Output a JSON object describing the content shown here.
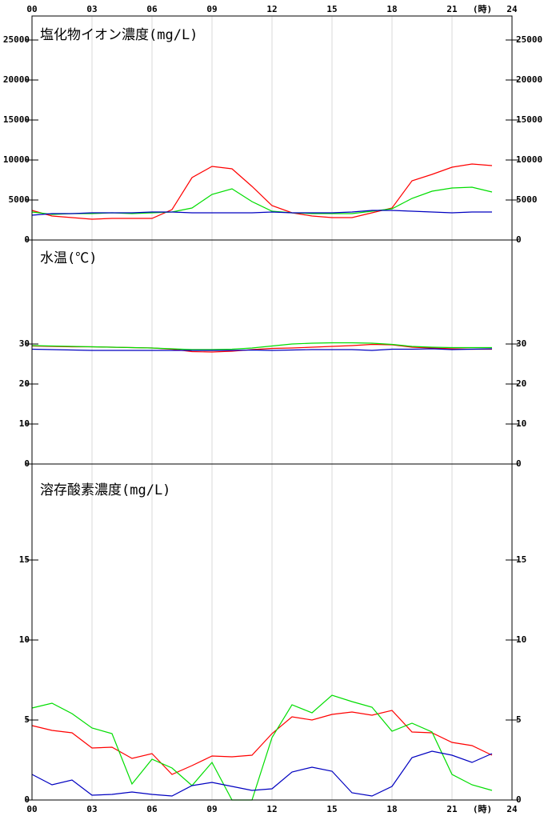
{
  "x_axis": {
    "xlim": [
      0,
      24
    ],
    "unit": "(時)",
    "xticks": [
      {
        "value": 0,
        "label": "00"
      },
      {
        "value": 3,
        "label": "03"
      },
      {
        "value": 6,
        "label": "06"
      },
      {
        "value": 9,
        "label": "09"
      },
      12,
      15,
      18,
      21,
      24
    ]
  },
  "chart_data": [
    {
      "type": "line",
      "title": "塩化物イオン濃度(mg/L)",
      "x": [
        0,
        1,
        2,
        3,
        4,
        5,
        6,
        7,
        8,
        9,
        10,
        11,
        12,
        13,
        14,
        15,
        16,
        17,
        18,
        19,
        20,
        21,
        22,
        23
      ],
      "ylim": [
        0,
        28000
      ],
      "yticks": [
        0,
        5000,
        10000,
        15000,
        20000,
        25000
      ],
      "series": [
        {
          "color": "#ff0000",
          "values": [
            3700,
            3000,
            2800,
            2600,
            2700,
            2700,
            2700,
            3800,
            7800,
            9200,
            8900,
            6700,
            4300,
            3400,
            3000,
            2800,
            2800,
            3400,
            4000,
            7400,
            8200,
            9100,
            9500,
            9300
          ]
        },
        {
          "color": "#00dd00",
          "values": [
            3500,
            3200,
            3300,
            3300,
            3400,
            3300,
            3400,
            3500,
            4000,
            5700,
            6400,
            4800,
            3600,
            3400,
            3300,
            3300,
            3300,
            3600,
            3900,
            5200,
            6100,
            6500,
            6600,
            6000
          ]
        },
        {
          "color": "#0000c0",
          "values": [
            3100,
            3300,
            3300,
            3400,
            3400,
            3400,
            3500,
            3500,
            3400,
            3400,
            3400,
            3400,
            3500,
            3400,
            3400,
            3400,
            3500,
            3700,
            3700,
            3600,
            3500,
            3400,
            3500,
            3500
          ]
        }
      ]
    },
    {
      "type": "line",
      "title": "水温(℃)",
      "x": [
        0,
        1,
        2,
        3,
        4,
        5,
        6,
        7,
        8,
        9,
        10,
        11,
        12,
        13,
        14,
        15,
        16,
        17,
        18,
        19,
        20,
        21,
        22,
        23
      ],
      "ylim": [
        0,
        56
      ],
      "yticks": [
        0,
        10,
        20,
        30
      ],
      "series": [
        {
          "color": "#ff0000",
          "values": [
            29.5,
            29.4,
            29.3,
            29.3,
            29.2,
            29.1,
            29.0,
            28.7,
            28.1,
            28.0,
            28.2,
            28.6,
            28.9,
            29.0,
            29.2,
            29.4,
            29.6,
            29.9,
            29.8,
            29.2,
            29.0,
            28.8,
            28.7,
            28.7
          ]
        },
        {
          "color": "#00dd00",
          "values": [
            29.6,
            29.5,
            29.4,
            29.3,
            29.2,
            29.1,
            29.0,
            28.8,
            28.6,
            28.6,
            28.7,
            29.0,
            29.5,
            30.0,
            30.2,
            30.3,
            30.3,
            30.2,
            29.9,
            29.4,
            29.2,
            29.1,
            29.1,
            29.1
          ]
        },
        {
          "color": "#0000c0",
          "values": [
            28.7,
            28.6,
            28.5,
            28.4,
            28.4,
            28.4,
            28.4,
            28.4,
            28.4,
            28.4,
            28.4,
            28.5,
            28.4,
            28.5,
            28.6,
            28.6,
            28.6,
            28.4,
            28.7,
            28.7,
            28.8,
            28.6,
            28.7,
            28.8
          ]
        }
      ]
    },
    {
      "type": "line",
      "title": "溶存酸素濃度(mg/L)",
      "x": [
        0,
        1,
        2,
        3,
        4,
        5,
        6,
        7,
        8,
        9,
        10,
        11,
        12,
        13,
        14,
        15,
        16,
        17,
        18,
        19,
        20,
        21,
        22,
        23
      ],
      "ylim": [
        0,
        21
      ],
      "yticks": [
        0,
        5,
        10,
        15
      ],
      "series": [
        {
          "color": "#ff0000",
          "values": [
            4.65,
            4.35,
            4.2,
            3.25,
            3.3,
            2.6,
            2.9,
            1.6,
            2.15,
            2.75,
            2.7,
            2.8,
            4.15,
            5.2,
            5.0,
            5.35,
            5.5,
            5.3,
            5.6,
            4.25,
            4.2,
            3.6,
            3.4,
            2.8
          ]
        },
        {
          "color": "#00dd00",
          "values": [
            5.75,
            6.05,
            5.4,
            4.5,
            4.15,
            1.0,
            2.55,
            2.0,
            0.9,
            2.35,
            0,
            0,
            3.9,
            5.95,
            5.45,
            6.55,
            6.15,
            5.8,
            4.3,
            4.8,
            4.25,
            1.6,
            0.95,
            0.6
          ]
        },
        {
          "color": "#0000c0",
          "values": [
            1.6,
            0.95,
            1.25,
            0.3,
            0.35,
            0.5,
            0.35,
            0.25,
            0.9,
            1.1,
            0.85,
            0.6,
            0.7,
            1.75,
            2.05,
            1.8,
            0.45,
            0.25,
            0.85,
            2.65,
            3.05,
            2.8,
            2.35,
            2.9
          ]
        }
      ]
    }
  ]
}
